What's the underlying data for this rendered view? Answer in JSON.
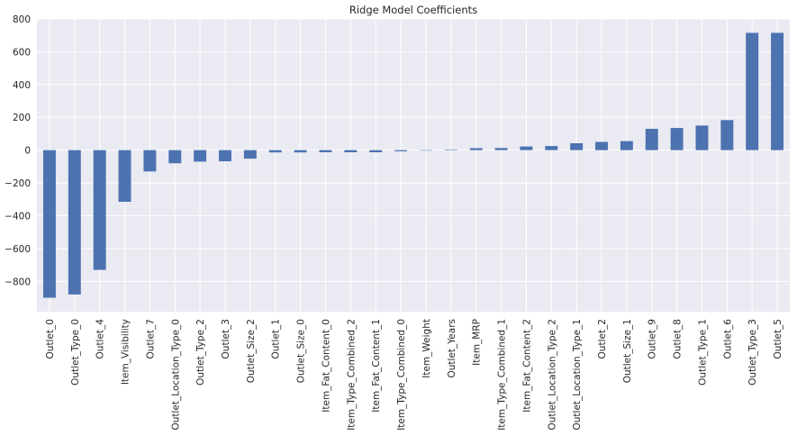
{
  "chart_data": {
    "type": "bar",
    "title": "Ridge Model Coefficients",
    "xlabel": "",
    "ylabel": "",
    "ylim": [
      -985,
      800
    ],
    "yticks": [
      800,
      600,
      400,
      200,
      0,
      -200,
      -400,
      -600,
      -800
    ],
    "ytick_labels": [
      "800",
      "600",
      "400",
      "200",
      "0",
      "−200",
      "−400",
      "−600",
      "−800"
    ],
    "grid": true,
    "legend": "none",
    "categories": [
      "Outlet_0",
      "Outlet_Type_0",
      "Outlet_4",
      "Item_Visibility",
      "Outlet_7",
      "Outlet_Location_Type_0",
      "Outlet_Type_2",
      "Outlet_3",
      "Outlet_Size_2",
      "Outlet_1",
      "Outlet_Size_0",
      "Item_Fat_Content_0",
      "Item_Type_Combined_2",
      "Item_Fat_Content_1",
      "Item_Type_Combined_0",
      "Item_Weight",
      "Outlet_Years",
      "Item_MRP",
      "Item_Type_Combined_1",
      "Item_Fat_Content_2",
      "Outlet_Location_Type_2",
      "Outlet_Location_Type_1",
      "Outlet_2",
      "Outlet_Size_1",
      "Outlet_9",
      "Outlet_8",
      "Outlet_Type_1",
      "Outlet_6",
      "Outlet_Type_3",
      "Outlet_5"
    ],
    "values": [
      -900,
      -880,
      -730,
      -315,
      -130,
      -80,
      -70,
      -68,
      -52,
      -14,
      -14,
      -13,
      -13,
      -13,
      -7,
      0,
      3,
      12,
      13,
      22,
      25,
      42,
      50,
      55,
      130,
      135,
      150,
      183,
      715,
      715
    ],
    "colors": {
      "bar": "#4c72b0",
      "background": "#eaeaf2",
      "grid": "#ffffff",
      "text": "#262626"
    }
  }
}
